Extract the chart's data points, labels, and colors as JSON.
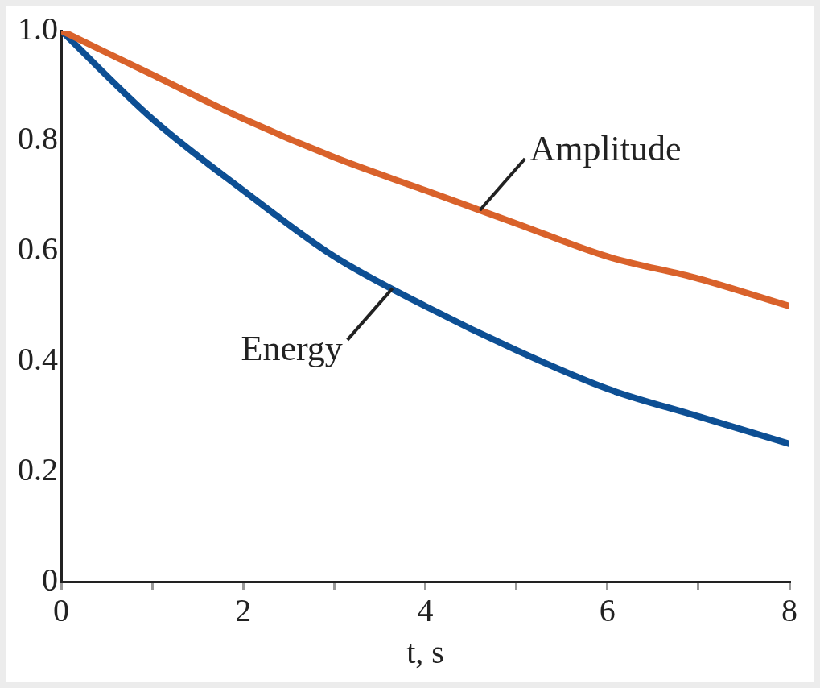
{
  "chart_data": {
    "type": "line",
    "xlabel": "t, s",
    "x": [
      0,
      1,
      2,
      3,
      4,
      5,
      6,
      7,
      8
    ],
    "series": [
      {
        "name": "Amplitude",
        "color": "#d9622b",
        "values": [
          1.0,
          0.92,
          0.84,
          0.77,
          0.71,
          0.65,
          0.59,
          0.55,
          0.5
        ]
      },
      {
        "name": "Energy",
        "color": "#0d4f94",
        "values": [
          1.0,
          0.84,
          0.71,
          0.59,
          0.5,
          0.42,
          0.35,
          0.3,
          0.25
        ]
      }
    ],
    "xlim": [
      0,
      8
    ],
    "xticks": [
      0,
      {
        "value": 1,
        "label": null
      },
      2,
      {
        "value": 3,
        "label": null
      },
      4,
      {
        "value": 5,
        "label": null
      },
      6,
      {
        "value": 7,
        "label": null
      },
      8
    ],
    "ylim": [
      0,
      1.0
    ],
    "yticks": [
      0,
      {
        "value": 0.2,
        "label": "0.2"
      },
      {
        "value": 0.4,
        "label": "0.4"
      },
      {
        "value": 0.6,
        "label": "0.6"
      },
      {
        "value": 0.8,
        "label": "0.8"
      },
      {
        "value": 1.0,
        "label": "1.0"
      }
    ],
    "grid": false,
    "legend": false,
    "marker": "none",
    "line_style": "solid"
  }
}
